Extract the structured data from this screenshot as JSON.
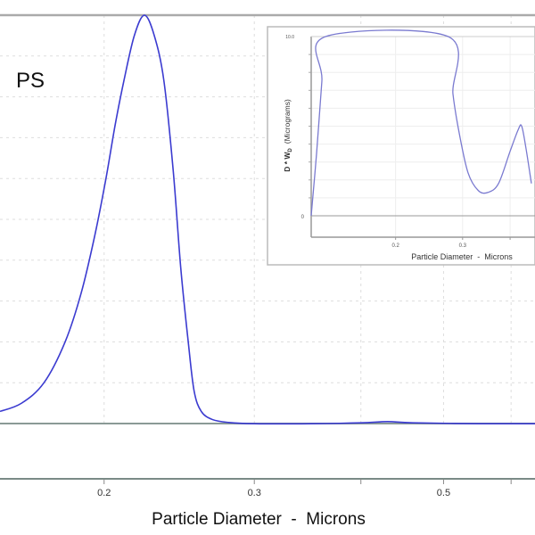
{
  "chart_data": [
    {
      "type": "line",
      "annotation": "PS",
      "xlabel": "Particle Diameter  -  Microns",
      "ylabel": "",
      "x_scale": "log",
      "xlim": [
        0.151,
        0.64
      ],
      "ylim": [
        -13.5,
        100
      ],
      "x_ticks": [
        0.2,
        0.3,
        0.4,
        0.5,
        0.6
      ],
      "x_tick_labels": [
        "0.2",
        "0.3",
        "",
        "0.5",
        ""
      ],
      "grid": true,
      "line_color": "#3b3bd0",
      "series": [
        {
          "x": [
            0.151,
            0.16,
            0.17,
            0.18,
            0.188,
            0.195,
            0.201,
            0.206,
            0.211,
            0.217,
            0.223,
            0.229,
            0.235,
            0.241,
            0.246,
            0.251,
            0.255,
            0.26,
            0.268,
            0.28,
            0.3,
            0.35,
            0.4,
            0.43,
            0.46,
            0.55,
            0.64
          ],
          "y": [
            3,
            5,
            10,
            20,
            32,
            46,
            60,
            73,
            84,
            95,
            100,
            95,
            84,
            62,
            38,
            20,
            8,
            3,
            1,
            0.3,
            0,
            0,
            0.2,
            0.5,
            0.2,
            0,
            0
          ]
        }
      ]
    },
    {
      "type": "line",
      "inset": true,
      "xlabel": "Particle Diameter  -  Microns",
      "ylabel": "D * W",
      "ylabel_subscript": "D",
      "ylabel_units": "(Micrograms)",
      "x_scale": "log",
      "xlim": [
        0.12,
        0.46
      ],
      "ylim": [
        -1.2,
        10
      ],
      "y_tick_labels": [
        "0",
        "10.0"
      ],
      "x_ticks": [
        0.2,
        0.3,
        0.4
      ],
      "x_tick_labels": [
        "0.2",
        "0.3",
        ""
      ],
      "line_color": "#7a7ad0",
      "series": [
        {
          "x": [
            0.12,
            0.124,
            0.128,
            0.131,
            0.275,
            0.283,
            0.294,
            0.31,
            0.33,
            0.35,
            0.373,
            0.4,
            0.42,
            0.429,
            0.44,
            0.455
          ],
          "y": [
            0,
            3.5,
            7.5,
            10,
            10,
            6.8,
            4.6,
            2.4,
            1.4,
            1.3,
            1.8,
            3.6,
            4.8,
            5.0,
            3.8,
            1.8
          ]
        }
      ]
    }
  ]
}
